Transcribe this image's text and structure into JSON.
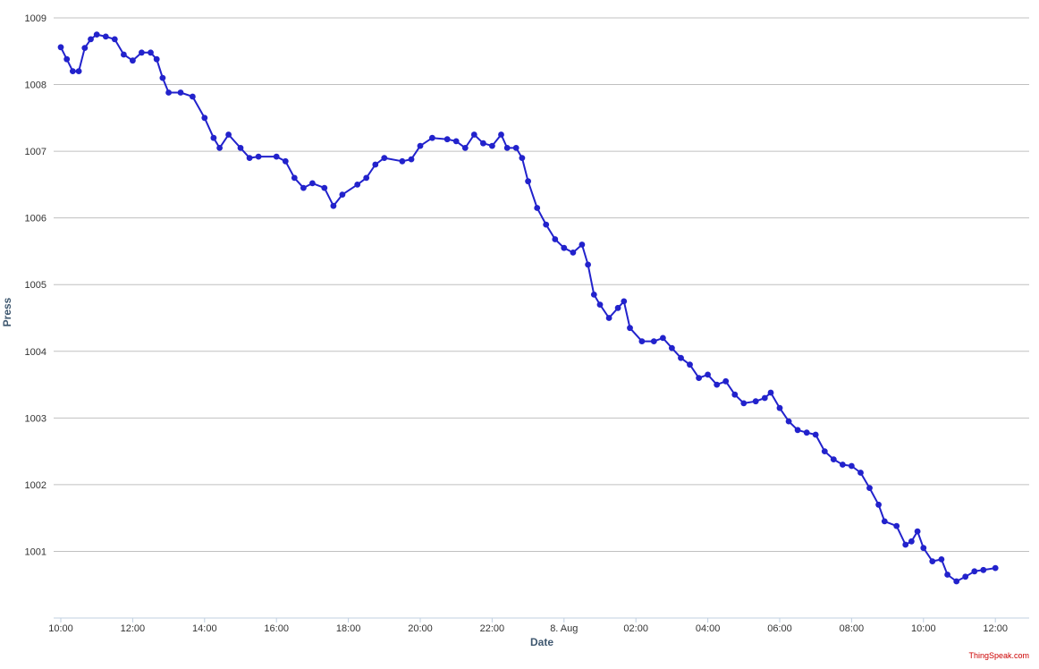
{
  "chart_data": {
    "type": "line",
    "title": "",
    "xlabel": "Date",
    "ylabel": "Press",
    "ylim": [
      1000,
      1009
    ],
    "xlim": [
      "2023-08-07T10:00",
      "2023-08-08T13:00"
    ],
    "grid": true,
    "legend": "none",
    "x_ticks": [
      "10:00",
      "12:00",
      "14:00",
      "16:00",
      "18:00",
      "20:00",
      "22:00",
      "8. Aug",
      "02:00",
      "04:00",
      "06:00",
      "08:00",
      "10:00",
      "12:00"
    ],
    "y_ticks": [
      "1001",
      "1002",
      "1003",
      "1004",
      "1005",
      "1006",
      "1007",
      "1008",
      "1009"
    ],
    "series": [
      {
        "color": "#2222cc",
        "points": [
          [
            "2023-08-07T10:00",
            1008.56
          ],
          [
            "2023-08-07T10:10",
            1008.38
          ],
          [
            "2023-08-07T10:20",
            1008.2
          ],
          [
            "2023-08-07T10:30",
            1008.2
          ],
          [
            "2023-08-07T10:40",
            1008.55
          ],
          [
            "2023-08-07T10:50",
            1008.68
          ],
          [
            "2023-08-07T11:00",
            1008.75
          ],
          [
            "2023-08-07T11:15",
            1008.72
          ],
          [
            "2023-08-07T11:30",
            1008.68
          ],
          [
            "2023-08-07T11:45",
            1008.45
          ],
          [
            "2023-08-07T12:00",
            1008.36
          ],
          [
            "2023-08-07T12:15",
            1008.48
          ],
          [
            "2023-08-07T12:30",
            1008.48
          ],
          [
            "2023-08-07T12:40",
            1008.38
          ],
          [
            "2023-08-07T12:50",
            1008.1
          ],
          [
            "2023-08-07T13:00",
            1007.88
          ],
          [
            "2023-08-07T13:20",
            1007.88
          ],
          [
            "2023-08-07T13:40",
            1007.82
          ],
          [
            "2023-08-07T14:00",
            1007.5
          ],
          [
            "2023-08-07T14:15",
            1007.2
          ],
          [
            "2023-08-07T14:25",
            1007.05
          ],
          [
            "2023-08-07T14:40",
            1007.25
          ],
          [
            "2023-08-07T15:00",
            1007.05
          ],
          [
            "2023-08-07T15:15",
            1006.9
          ],
          [
            "2023-08-07T15:30",
            1006.92
          ],
          [
            "2023-08-07T16:00",
            1006.92
          ],
          [
            "2023-08-07T16:15",
            1006.85
          ],
          [
            "2023-08-07T16:30",
            1006.6
          ],
          [
            "2023-08-07T16:45",
            1006.45
          ],
          [
            "2023-08-07T17:00",
            1006.52
          ],
          [
            "2023-08-07T17:20",
            1006.45
          ],
          [
            "2023-08-07T17:35",
            1006.18
          ],
          [
            "2023-08-07T17:50",
            1006.35
          ],
          [
            "2023-08-07T18:15",
            1006.5
          ],
          [
            "2023-08-07T18:30",
            1006.6
          ],
          [
            "2023-08-07T18:45",
            1006.8
          ],
          [
            "2023-08-07T19:00",
            1006.9
          ],
          [
            "2023-08-07T19:30",
            1006.85
          ],
          [
            "2023-08-07T19:45",
            1006.88
          ],
          [
            "2023-08-07T20:00",
            1007.08
          ],
          [
            "2023-08-07T20:20",
            1007.2
          ],
          [
            "2023-08-07T20:45",
            1007.18
          ],
          [
            "2023-08-07T21:00",
            1007.15
          ],
          [
            "2023-08-07T21:15",
            1007.05
          ],
          [
            "2023-08-07T21:30",
            1007.25
          ],
          [
            "2023-08-07T21:45",
            1007.12
          ],
          [
            "2023-08-07T22:00",
            1007.08
          ],
          [
            "2023-08-07T22:15",
            1007.25
          ],
          [
            "2023-08-07T22:25",
            1007.05
          ],
          [
            "2023-08-07T22:40",
            1007.05
          ],
          [
            "2023-08-07T22:50",
            1006.9
          ],
          [
            "2023-08-07T23:00",
            1006.55
          ],
          [
            "2023-08-07T23:15",
            1006.15
          ],
          [
            "2023-08-07T23:30",
            1005.9
          ],
          [
            "2023-08-07T23:45",
            1005.68
          ],
          [
            "2023-08-08T00:00",
            1005.55
          ],
          [
            "2023-08-08T00:15",
            1005.48
          ],
          [
            "2023-08-08T00:30",
            1005.6
          ],
          [
            "2023-08-08T00:40",
            1005.3
          ],
          [
            "2023-08-08T00:50",
            1004.85
          ],
          [
            "2023-08-08T01:00",
            1004.7
          ],
          [
            "2023-08-08T01:15",
            1004.5
          ],
          [
            "2023-08-08T01:30",
            1004.65
          ],
          [
            "2023-08-08T01:40",
            1004.75
          ],
          [
            "2023-08-08T01:50",
            1004.35
          ],
          [
            "2023-08-08T02:10",
            1004.15
          ],
          [
            "2023-08-08T02:30",
            1004.15
          ],
          [
            "2023-08-08T02:45",
            1004.2
          ],
          [
            "2023-08-08T03:00",
            1004.05
          ],
          [
            "2023-08-08T03:15",
            1003.9
          ],
          [
            "2023-08-08T03:30",
            1003.8
          ],
          [
            "2023-08-08T03:45",
            1003.6
          ],
          [
            "2023-08-08T04:00",
            1003.65
          ],
          [
            "2023-08-08T04:15",
            1003.5
          ],
          [
            "2023-08-08T04:30",
            1003.55
          ],
          [
            "2023-08-08T04:45",
            1003.35
          ],
          [
            "2023-08-08T05:00",
            1003.22
          ],
          [
            "2023-08-08T05:20",
            1003.25
          ],
          [
            "2023-08-08T05:35",
            1003.3
          ],
          [
            "2023-08-08T05:45",
            1003.38
          ],
          [
            "2023-08-08T06:00",
            1003.15
          ],
          [
            "2023-08-08T06:15",
            1002.95
          ],
          [
            "2023-08-08T06:30",
            1002.82
          ],
          [
            "2023-08-08T06:45",
            1002.78
          ],
          [
            "2023-08-08T07:00",
            1002.75
          ],
          [
            "2023-08-08T07:15",
            1002.5
          ],
          [
            "2023-08-08T07:30",
            1002.38
          ],
          [
            "2023-08-08T07:45",
            1002.3
          ],
          [
            "2023-08-08T08:00",
            1002.28
          ],
          [
            "2023-08-08T08:15",
            1002.18
          ],
          [
            "2023-08-08T08:30",
            1001.95
          ],
          [
            "2023-08-08T08:45",
            1001.7
          ],
          [
            "2023-08-08T08:55",
            1001.45
          ],
          [
            "2023-08-08T09:15",
            1001.38
          ],
          [
            "2023-08-08T09:30",
            1001.1
          ],
          [
            "2023-08-08T09:40",
            1001.15
          ],
          [
            "2023-08-08T09:50",
            1001.3
          ],
          [
            "2023-08-08T10:00",
            1001.05
          ],
          [
            "2023-08-08T10:15",
            1000.85
          ],
          [
            "2023-08-08T10:30",
            1000.88
          ],
          [
            "2023-08-08T10:40",
            1000.65
          ],
          [
            "2023-08-08T10:55",
            1000.55
          ],
          [
            "2023-08-08T11:10",
            1000.62
          ],
          [
            "2023-08-08T11:25",
            1000.7
          ],
          [
            "2023-08-08T11:40",
            1000.72
          ],
          [
            "2023-08-08T12:00",
            1000.75
          ]
        ]
      }
    ]
  },
  "credit": "ThingSpeak.com"
}
